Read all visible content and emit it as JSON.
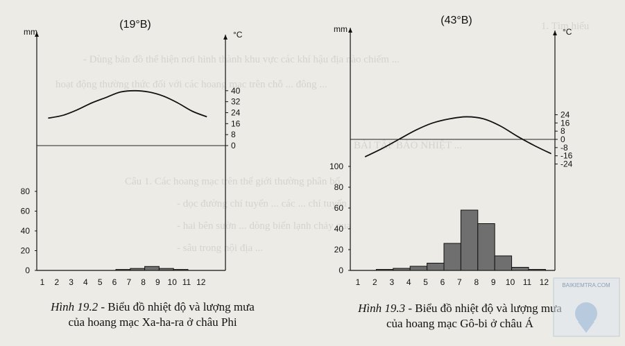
{
  "chart_data": [
    {
      "type": "bar+line",
      "latitude_label": "(19°B)",
      "rain_unit": "mm",
      "temp_unit": "°C",
      "months": [
        "1",
        "2",
        "3",
        "4",
        "5",
        "6",
        "7",
        "8",
        "9",
        "10",
        "11",
        "12"
      ],
      "rain_ticks": [
        "0",
        "20",
        "40",
        "60",
        "80"
      ],
      "rain_ylim": [
        0,
        90
      ],
      "temp_ticks": [
        "0",
        "8",
        "16",
        "24",
        "32",
        "40"
      ],
      "temp_ylim": [
        -10,
        48
      ],
      "rainfall_mm": [
        0,
        0,
        0,
        0,
        0,
        1,
        2,
        4,
        2,
        1,
        0,
        0
      ],
      "temperature_c": [
        20,
        22,
        26,
        31,
        35,
        39,
        40,
        39,
        36,
        31,
        25,
        21
      ],
      "caption_fig": "Hình 19.2",
      "caption_line1": " - Biểu đồ nhiệt độ và lượng mưa",
      "caption_line2": "của hoang mạc Xa-ha-ra ở châu Phi"
    },
    {
      "type": "bar+line",
      "latitude_label": "(43°B)",
      "rain_unit": "mm",
      "temp_unit": "°C",
      "months": [
        "1",
        "2",
        "3",
        "4",
        "5",
        "6",
        "7",
        "8",
        "9",
        "10",
        "11",
        "12"
      ],
      "rain_ticks": [
        "0",
        "20",
        "40",
        "60",
        "80",
        "100"
      ],
      "rain_ylim": [
        0,
        110
      ],
      "temp_ticks": [
        "-24",
        "-16",
        "-8",
        "0",
        "8",
        "16",
        "24"
      ],
      "temp_ylim": [
        -28,
        30
      ],
      "rainfall_mm": [
        0,
        1,
        2,
        4,
        7,
        26,
        58,
        45,
        14,
        3,
        1,
        0
      ],
      "temperature_c": [
        -17,
        -9,
        0,
        9,
        16,
        20,
        22,
        20,
        13,
        3,
        -6,
        -14
      ],
      "caption_fig": "Hình 19.3",
      "caption_line1": " - Biểu đồ nhiệt độ và lượng mưa",
      "caption_line2": "của hoang mạc Gô-bi ở châu Á"
    }
  ],
  "background_text": [
    "1. Tìm hiểu",
    "- Dùng bản đồ thể hiện nơi hình thành khu vực các khí hậu địa nào chiếm ...",
    "hoạt động thường thức đối với các hoang mạc trên chỗ ... đông ...",
    "BÀI TẬP BẢO NHIỆT ...",
    "Câu 1. Các hoang mạc trên thế giới thường phân bố",
    "- dọc đường chí tuyến ... các ... chí tuyến",
    "- hai bên sườn ... dòng biển lạnh chảy qua",
    "- sâu trong nội địa ..."
  ],
  "badge_text": "BAIKIEMTRA.COM"
}
